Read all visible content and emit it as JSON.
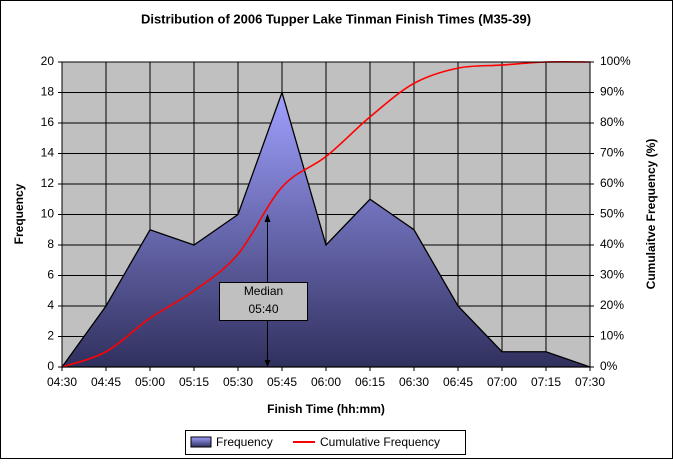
{
  "chart_data": {
    "type": "area",
    "title": "Distribution of 2006 Tupper Lake Tinman Finish Times (M35-39)",
    "x_label": "Finish Time (hh:mm)",
    "y_label": "Frequency",
    "y2_label": "Cumulaitve Frequency (%)",
    "categories": [
      "04:30",
      "04:45",
      "05:00",
      "05:15",
      "05:30",
      "05:45",
      "06:00",
      "06:15",
      "06:30",
      "06:45",
      "07:00",
      "07:15",
      "07:30"
    ],
    "series": [
      {
        "name": "Frequency",
        "color": "#9999ff",
        "values": [
          0,
          4,
          9,
          8,
          10,
          18,
          8,
          11,
          9,
          4,
          1,
          1,
          0
        ]
      },
      {
        "name": "Cumulative Frequency",
        "color": "#ff0000",
        "axis": "y2",
        "values": [
          0,
          5,
          16,
          25,
          37,
          59,
          69,
          82,
          93,
          98,
          99,
          100,
          100
        ]
      }
    ],
    "ylim": [
      0,
      20
    ],
    "yticks": [
      0,
      2,
      4,
      6,
      8,
      10,
      12,
      14,
      16,
      18,
      20
    ],
    "y2lim": [
      0,
      100
    ],
    "y2ticks": [
      {
        "value": 0,
        "label": "0%"
      },
      {
        "value": 10,
        "label": "10%"
      },
      {
        "value": 20,
        "label": "20%"
      },
      {
        "value": 30,
        "label": "30%"
      },
      {
        "value": 40,
        "label": "40%"
      },
      {
        "value": 50,
        "label": "50%"
      },
      {
        "value": 60,
        "label": "60%"
      },
      {
        "value": 70,
        "label": "70%"
      },
      {
        "value": 80,
        "label": "80%"
      },
      {
        "value": 90,
        "label": "90%"
      },
      {
        "value": 100,
        "label": "100%"
      }
    ],
    "annotation": {
      "lines": [
        "Median",
        "05:40"
      ]
    },
    "grid": true,
    "legend": "bottom"
  }
}
